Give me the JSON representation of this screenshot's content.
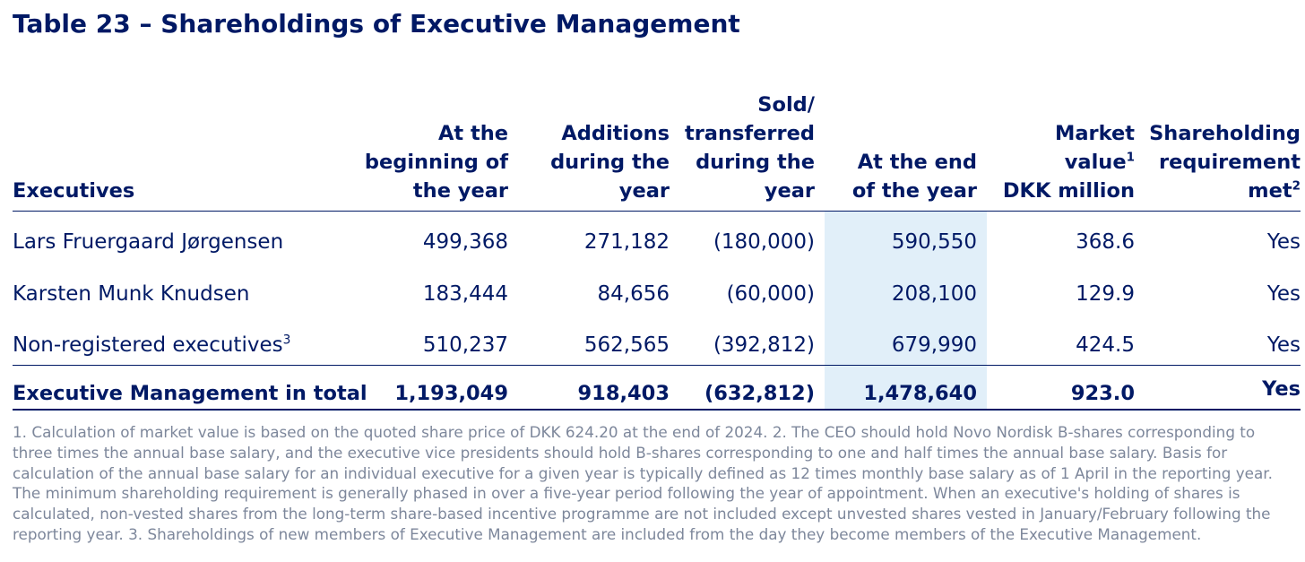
{
  "title": "Table 23 – Shareholdings of Executive Management",
  "columns": [
    {
      "label": "Executives"
    },
    {
      "label": "At the\nbeginning of\nthe year"
    },
    {
      "label": "Additions\nduring the\nyear"
    },
    {
      "label": "Sold/\ntransferred\nduring the\nyear"
    },
    {
      "label": "At the end\nof the year"
    },
    {
      "label_main": "Market\nvalue",
      "sup": "1",
      "label_after": "\nDKK million"
    },
    {
      "label_main": "Shareholding\nrequirement\nmet",
      "sup": "2"
    }
  ],
  "rows": [
    {
      "name": "Lars Fruergaard Jørgensen",
      "name_sup": "",
      "begin": "499,368",
      "additions": "271,182",
      "sold": "(180,000)",
      "end": "590,550",
      "market_value": "368.6",
      "met": "Yes"
    },
    {
      "name": "Karsten Munk Knudsen",
      "name_sup": "",
      "begin": "183,444",
      "additions": "84,656",
      "sold": "(60,000)",
      "end": "208,100",
      "market_value": "129.9",
      "met": "Yes"
    },
    {
      "name": "Non-registered executives",
      "name_sup": "3",
      "begin": "510,237",
      "additions": "562,565",
      "sold": "(392,812)",
      "end": "679,990",
      "market_value": "424.5",
      "met": "Yes"
    }
  ],
  "total": {
    "name": "Executive Management in total",
    "begin": "1,193,049",
    "additions": "918,403",
    "sold": "(632,812)",
    "end": "1,478,640",
    "market_value": "923.0",
    "met": "Yes"
  },
  "footnotes": "1. Calculation of market value is based on the quoted share price of DKK 624.20 at the end of 2024. 2. The CEO should hold Novo Nordisk B-shares corresponding to three times the annual base salary, and the executive vice presidents should hold B-shares corresponding to one and half times the annual base salary. Basis for calculation of the annual base salary for an individual executive for a given year is typically defined as 12 times monthly base salary as of 1 April in the reporting year. The minimum shareholding requirement is generally phased in over a five-year period following the year of appointment. When an executive's holding of shares is calculated, non-vested shares from the long-term share-based incentive programme are not included except unvested shares vested in January/February following the reporting year. 3. Shareholdings of new members of Executive Management are included from the day they become members of the Executive Management.",
  "colors": {
    "text": "#001965",
    "highlight": "#e1eff9",
    "footnote": "#7d879b"
  }
}
